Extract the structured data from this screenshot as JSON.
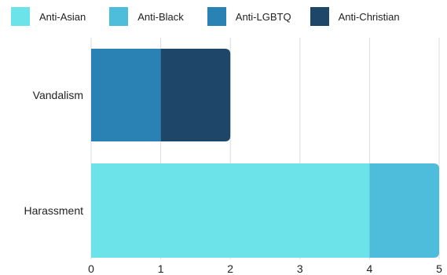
{
  "chart_data": {
    "type": "bar",
    "stacked": true,
    "orientation": "horizontal",
    "categories": [
      "Vandalism",
      "Harassment"
    ],
    "series": [
      {
        "name": "Anti-Asian",
        "color": "#6BE3E8",
        "values": [
          0,
          4
        ]
      },
      {
        "name": "Anti-Black",
        "color": "#4DBDDB",
        "values": [
          0,
          1
        ]
      },
      {
        "name": "Anti-LGBTQ",
        "color": "#2A82B4",
        "values": [
          1,
          0
        ]
      },
      {
        "name": "Anti-Christian",
        "color": "#1E4668",
        "values": [
          1,
          0
        ]
      }
    ],
    "xlim": [
      0,
      5
    ],
    "xticks": [
      "0",
      "1",
      "2",
      "3",
      "4",
      "5"
    ],
    "grid": "vertical",
    "legend": "top",
    "title": "",
    "xlabel": "",
    "ylabel": ""
  }
}
